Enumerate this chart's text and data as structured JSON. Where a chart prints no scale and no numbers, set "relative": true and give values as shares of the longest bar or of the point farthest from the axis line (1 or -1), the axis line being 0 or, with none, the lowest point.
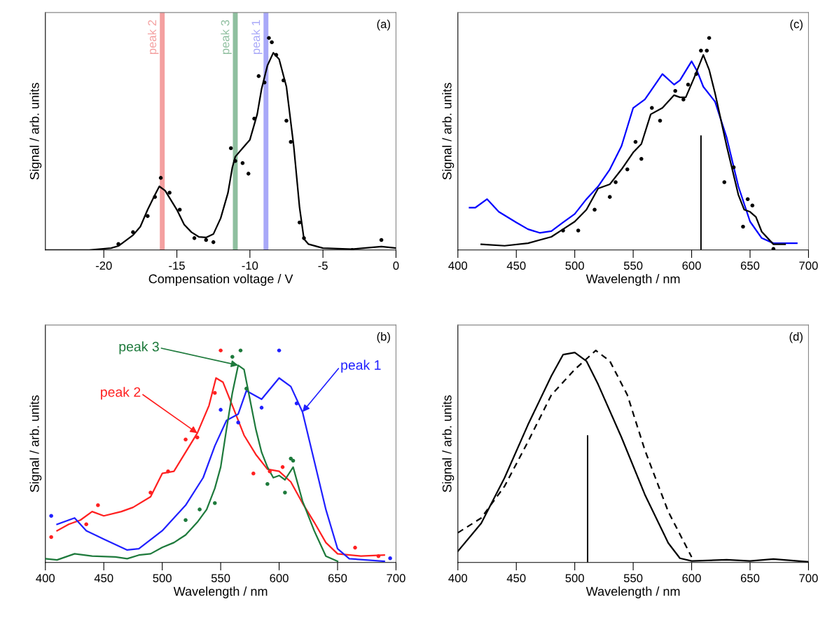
{
  "chart_data": [
    {
      "type": "line",
      "relative": true,
      "xlabel": "Compensation voltage / V",
      "ylabel": "Signal / arb. units",
      "xlim": [
        -24,
        0
      ],
      "xticks": [
        {
          "value": -20,
          "label": "-20"
        },
        {
          "value": -15,
          "label": "-15"
        },
        {
          "value": -10,
          "label": "-10"
        },
        {
          "value": -5,
          "label": "-5"
        },
        0
      ],
      "annotations": [
        "(a)"
      ],
      "ref_lines": [
        {
          "axis": "x",
          "value": -16,
          "label": "peak 2",
          "color": "#f4a0a0"
        },
        {
          "axis": "x",
          "value": -11,
          "label": "peak 3",
          "color": "#8fbf9f"
        },
        {
          "axis": "x",
          "value": -8.9,
          "label": "peak 1",
          "color": "#a8a8f8"
        }
      ],
      "series": [
        {
          "color": "#000000",
          "x": [
            -24,
            -21,
            -19.5,
            -19,
            -18,
            -17.5,
            -17,
            -16.5,
            -16.2,
            -15.8,
            -15,
            -14.5,
            -14,
            -13.5,
            -13,
            -12.5,
            -12,
            -11.5,
            -11.2,
            -11,
            -10.5,
            -10,
            -9.5,
            -9.2,
            -8.8,
            -8.4,
            -8,
            -7.5,
            -7,
            -6.6,
            -6.3,
            -6,
            -5,
            -3,
            -1,
            0
          ],
          "values": [
            0,
            0,
            0.009,
            0.019,
            0.07,
            0.11,
            0.19,
            0.26,
            0.3,
            0.28,
            0.19,
            0.12,
            0.084,
            0.062,
            0.059,
            0.075,
            0.15,
            0.27,
            0.39,
            0.44,
            0.48,
            0.52,
            0.64,
            0.76,
            0.87,
            0.93,
            0.9,
            0.77,
            0.49,
            0.2,
            0.052,
            0.028,
            0.009,
            0.004,
            0.016,
            0.009
          ]
        },
        {
          "type": "scatter",
          "color": "#000000",
          "marker": "circle",
          "x": [
            -19,
            -18,
            -17,
            -16.5,
            -16.1,
            -15.5,
            -14.8,
            -13.8,
            -13,
            -12.5,
            -11.3,
            -11,
            -10.5,
            -10.1,
            -9.7,
            -9.4,
            -9,
            -8.7,
            -8.5,
            -8.2,
            -7.7,
            -7.5,
            -7.2,
            -6.6,
            -6.3,
            -3,
            -1
          ],
          "values": [
            0.028,
            0.084,
            0.16,
            0.25,
            0.34,
            0.27,
            0.19,
            0.056,
            0.047,
            0.037,
            0.48,
            0.42,
            0.41,
            0.36,
            0.62,
            0.82,
            0.79,
            1,
            0.98,
            0.92,
            0.8,
            0.61,
            0.51,
            0.13,
            0.056,
            0,
            0.047
          ]
        }
      ]
    },
    {
      "type": "line",
      "relative": true,
      "xlabel": "Wavelength / nm",
      "ylabel": "Signal / arb. units",
      "xlim": [
        400,
        700
      ],
      "xticks": [
        400,
        450,
        500,
        550,
        600,
        650,
        700
      ],
      "annotations": [
        "(c)"
      ],
      "series": [
        {
          "color": "#0000ff",
          "x": [
            410,
            415,
            425,
            435,
            450,
            460,
            470,
            480,
            490,
            500,
            510,
            520,
            530,
            540,
            550,
            560,
            565,
            575,
            585,
            590,
            600,
            605,
            610,
            620,
            630,
            640,
            650,
            660,
            670,
            690
          ],
          "values": [
            0.2,
            0.2,
            0.24,
            0.18,
            0.13,
            0.098,
            0.081,
            0.089,
            0.13,
            0.17,
            0.24,
            0.3,
            0.38,
            0.49,
            0.67,
            0.71,
            0.75,
            0.83,
            0.78,
            0.8,
            0.89,
            0.84,
            0.77,
            0.7,
            0.53,
            0.3,
            0.134,
            0.056,
            0.032,
            0.032
          ]
        },
        {
          "color": "#000000",
          "x": [
            420,
            440,
            460,
            480,
            490,
            500,
            510,
            520,
            530,
            540,
            550,
            557,
            565,
            575,
            585,
            590,
            595,
            602,
            610,
            615,
            620,
            630,
            640,
            645,
            650,
            655,
            660,
            670,
            680
          ],
          "values": [
            0.027,
            0.02,
            0.032,
            0.062,
            0.098,
            0.134,
            0.19,
            0.29,
            0.31,
            0.38,
            0.46,
            0.5,
            0.64,
            0.67,
            0.73,
            0.72,
            0.72,
            0.81,
            0.92,
            0.85,
            0.74,
            0.49,
            0.26,
            0.19,
            0.18,
            0.156,
            0.086,
            0.027,
            0.027
          ]
        },
        {
          "type": "scatter",
          "color": "#000000",
          "marker": "circle",
          "x": [
            490,
            503,
            517,
            530,
            535,
            545,
            552,
            557,
            566,
            573,
            586,
            593,
            597,
            604,
            608,
            613,
            615,
            628,
            636,
            644,
            648,
            652,
            670
          ],
          "values": [
            0.092,
            0.092,
            0.19,
            0.25,
            0.32,
            0.38,
            0.51,
            0.43,
            0.67,
            0.61,
            0.75,
            0.71,
            0.78,
            0.83,
            0.94,
            0.94,
            1,
            0.32,
            0.39,
            0.11,
            0.24,
            0.21,
            0.005
          ]
        },
        {
          "type": "bar",
          "color": "#000000",
          "x": [
            608
          ],
          "values": [
            0.54
          ]
        }
      ]
    },
    {
      "type": "line",
      "relative": true,
      "xlabel": "Wavelength / nm",
      "ylabel": "Signal / arb. units",
      "xlim": [
        400,
        700
      ],
      "xticks": [
        400,
        450,
        500,
        550,
        600,
        650,
        700
      ],
      "annotations": [
        "(b)",
        {
          "text": "peak 3",
          "x": 565,
          "y": 0.93
        },
        {
          "text": "peak 2",
          "x": 530,
          "y": 0.61
        },
        {
          "text": "peak 1",
          "x": 620,
          "y": 0.71
        }
      ],
      "series": [
        {
          "color": "#ff2020",
          "x": [
            410,
            420,
            430,
            440,
            450,
            465,
            475,
            490,
            500,
            510,
            520,
            530,
            540,
            546,
            552,
            560,
            570,
            580,
            590,
            600,
            610,
            620,
            630,
            640,
            650,
            670,
            690
          ],
          "values": [
            0.15,
            0.18,
            0.2,
            0.24,
            0.22,
            0.24,
            0.26,
            0.31,
            0.42,
            0.43,
            0.52,
            0.61,
            0.74,
            0.87,
            0.85,
            0.74,
            0.6,
            0.51,
            0.44,
            0.43,
            0.38,
            0.28,
            0.19,
            0.094,
            0.041,
            0.03,
            0.035
          ]
        },
        {
          "color": "#2020ff",
          "x": [
            410,
            425,
            435,
            450,
            470,
            480,
            500,
            520,
            535,
            545,
            555,
            565,
            572,
            585,
            600,
            610,
            620,
            630,
            640,
            650,
            660,
            690
          ],
          "values": [
            0.18,
            0.21,
            0.15,
            0.11,
            0.059,
            0.065,
            0.15,
            0.27,
            0.4,
            0.55,
            0.67,
            0.7,
            0.81,
            0.77,
            0.87,
            0.83,
            0.71,
            0.48,
            0.25,
            0.065,
            0.018,
            0.006
          ]
        },
        {
          "color": "#1e7a3c",
          "x": [
            400,
            410,
            425,
            440,
            460,
            470,
            480,
            490,
            500,
            510,
            520,
            530,
            538,
            545,
            550,
            555,
            560,
            565,
            570,
            575,
            580,
            585,
            590,
            595,
            600,
            605,
            612,
            620,
            630,
            640,
            650
          ],
          "values": [
            0.018,
            0.012,
            0.041,
            0.03,
            0.026,
            0.018,
            0.035,
            0.041,
            0.071,
            0.094,
            0.13,
            0.19,
            0.25,
            0.35,
            0.45,
            0.63,
            0.8,
            0.93,
            0.91,
            0.77,
            0.63,
            0.52,
            0.45,
            0.4,
            0.41,
            0.39,
            0.45,
            0.29,
            0.15,
            0.03,
            0.006
          ]
        },
        {
          "type": "scatter",
          "color": "#ff2020",
          "marker": "circle",
          "x": [
            405,
            435,
            445,
            490,
            505,
            520,
            530,
            545,
            550,
            578,
            592,
            603,
            665,
            685
          ],
          "values": [
            0.12,
            0.18,
            0.27,
            0.33,
            0.43,
            0.58,
            0.59,
            0.8,
            1.0,
            0.42,
            0.43,
            0.45,
            0.07,
            0.03
          ]
        },
        {
          "type": "scatter",
          "color": "#1e7a3c",
          "marker": "circle",
          "x": [
            520,
            532,
            545,
            560,
            567,
            572,
            590,
            605,
            610,
            612
          ],
          "values": [
            0.2,
            0.25,
            0.28,
            0.97,
            1.0,
            0.82,
            0.37,
            0.33,
            0.49,
            0.48
          ]
        },
        {
          "type": "scatter",
          "color": "#2020ff",
          "marker": "circle",
          "x": [
            405,
            550,
            565,
            585,
            600,
            615,
            695
          ],
          "values": [
            0.22,
            0.72,
            0.66,
            0.73,
            1.0,
            0.75,
            0.02
          ]
        }
      ]
    },
    {
      "type": "line",
      "relative": true,
      "xlabel": "Wavelength / nm",
      "ylabel": "Signal / arb. units",
      "xlim": [
        400,
        700
      ],
      "xticks": [
        400,
        450,
        500,
        550,
        600,
        650,
        700
      ],
      "annotations": [
        "(d)"
      ],
      "series": [
        {
          "color": "#000000",
          "line_style": "solid",
          "x": [
            400,
            420,
            440,
            460,
            480,
            490,
            500,
            510,
            520,
            540,
            560,
            580,
            590,
            600,
            630,
            650,
            670,
            700
          ],
          "values": [
            0.053,
            0.185,
            0.4,
            0.65,
            0.88,
            0.98,
            0.99,
            0.95,
            0.84,
            0.59,
            0.32,
            0.092,
            0.02,
            0.007,
            0.013,
            0.007,
            0.016,
            0.003
          ]
        },
        {
          "color": "#000000",
          "line_style": "dashed",
          "x": [
            400,
            420,
            440,
            460,
            480,
            500,
            510,
            518,
            530,
            545,
            560,
            580,
            600
          ],
          "values": [
            0.14,
            0.21,
            0.36,
            0.57,
            0.79,
            0.91,
            0.96,
            1.0,
            0.95,
            0.79,
            0.53,
            0.24,
            0.026
          ]
        },
        {
          "type": "bar",
          "color": "#000000",
          "x": [
            511
          ],
          "values": [
            0.6
          ]
        }
      ]
    }
  ]
}
